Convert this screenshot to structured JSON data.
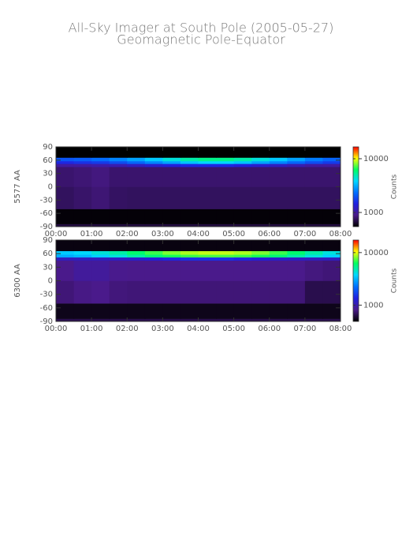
{
  "header": {
    "title": "All-Sky Imager at South Pole (2005-05-27)",
    "subtitle": "Geomagnetic Pole-Equator"
  },
  "chart_data": [
    {
      "type": "heatmap",
      "ylabel": "5577 AA",
      "colorbar_label": "Counts",
      "zscale": "log",
      "colormap": [
        "#000000",
        "#4a1a8a",
        "#2020e0",
        "#0070ff",
        "#00d8ff",
        "#00ff60",
        "#ffff00",
        "#ff0000"
      ],
      "xlim": [
        0,
        8
      ],
      "ylim": [
        -90,
        90
      ],
      "zlim": [
        545,
        16600
      ],
      "xticks": [
        {
          "value": 0,
          "label": "00:00"
        },
        {
          "value": 1,
          "label": "01:00"
        },
        {
          "value": 2,
          "label": "02:00"
        },
        {
          "value": 3,
          "label": "03:00"
        },
        {
          "value": 4,
          "label": "04:00"
        },
        {
          "value": 5,
          "label": "05:00"
        },
        {
          "value": 6,
          "label": "06:00"
        },
        {
          "value": 7,
          "label": "07:00"
        },
        {
          "value": 8,
          "label": "08:00"
        }
      ],
      "yticks": [
        90,
        60,
        30,
        0,
        -30,
        -60,
        -90
      ],
      "zticks": [
        1000,
        10000
      ],
      "xedges": [
        0,
        0.5,
        1,
        1.5,
        2,
        2.5,
        3,
        3.5,
        4,
        4.5,
        5,
        5.5,
        6,
        6.5,
        7,
        7.5,
        8
      ],
      "yedges": [
        -90,
        -84,
        -50,
        0,
        45,
        52,
        58,
        66,
        90
      ],
      "z": [
        [
          680,
          680,
          680,
          680,
          680,
          680,
          680,
          680,
          680,
          680,
          680,
          680,
          680,
          680,
          680,
          680
        ],
        [
          560,
          560,
          560,
          560,
          560,
          560,
          560,
          560,
          560,
          560,
          560,
          560,
          560,
          560,
          560,
          560
        ],
        [
          760,
          790,
          820,
          770,
          760,
          760,
          760,
          760,
          760,
          760,
          760,
          760,
          760,
          760,
          760,
          760
        ],
        [
          800,
          820,
          850,
          800,
          800,
          800,
          800,
          800,
          800,
          800,
          800,
          800,
          800,
          800,
          800,
          800
        ],
        [
          1000,
          1000,
          1050,
          1100,
          1200,
          1300,
          1400,
          1500,
          1500,
          1500,
          1400,
          1300,
          1200,
          1100,
          1000,
          1000
        ],
        [
          1500,
          1600,
          1700,
          1900,
          2200,
          2600,
          3000,
          3500,
          3800,
          3800,
          3500,
          3000,
          2600,
          2200,
          1900,
          1700
        ],
        [
          2000,
          2100,
          2300,
          2600,
          3000,
          3600,
          4300,
          5000,
          5500,
          5500,
          5000,
          4300,
          3600,
          3000,
          2500,
          2200
        ],
        [
          520,
          520,
          520,
          520,
          520,
          520,
          520,
          520,
          520,
          520,
          520,
          520,
          520,
          520,
          520,
          520
        ]
      ]
    },
    {
      "type": "heatmap",
      "ylabel": "6300 AA",
      "colorbar_label": "Counts",
      "zscale": "log",
      "colormap": [
        "#000000",
        "#4a1a8a",
        "#2020e0",
        "#0070ff",
        "#00d8ff",
        "#00ff60",
        "#ffff00",
        "#ff0000"
      ],
      "xlim": [
        0,
        8
      ],
      "ylim": [
        -90,
        90
      ],
      "zlim": [
        490,
        17300
      ],
      "xticks": [
        {
          "value": 0,
          "label": "00:00"
        },
        {
          "value": 1,
          "label": "01:00"
        },
        {
          "value": 2,
          "label": "02:00"
        },
        {
          "value": 3,
          "label": "03:00"
        },
        {
          "value": 4,
          "label": "04:00"
        },
        {
          "value": 5,
          "label": "05:00"
        },
        {
          "value": 6,
          "label": "06:00"
        },
        {
          "value": 7,
          "label": "07:00"
        },
        {
          "value": 8,
          "label": "08:00"
        }
      ],
      "yticks": [
        90,
        60,
        30,
        0,
        -30,
        -60,
        -90
      ],
      "zticks": [
        1000,
        10000
      ],
      "xedges": [
        0,
        0.5,
        1,
        1.5,
        2,
        2.5,
        3,
        3.5,
        4,
        4.5,
        5,
        5.5,
        6,
        6.5,
        7,
        7.5,
        8
      ],
      "yedges": [
        -90,
        -84,
        -50,
        0,
        45,
        52,
        58,
        66,
        90
      ],
      "z": [
        [
          650,
          650,
          650,
          650,
          650,
          650,
          650,
          650,
          650,
          650,
          650,
          650,
          650,
          650,
          650,
          650
        ],
        [
          540,
          540,
          540,
          540,
          540,
          540,
          540,
          540,
          540,
          540,
          540,
          540,
          540,
          540,
          540,
          540
        ],
        [
          760,
          800,
          820,
          770,
          760,
          760,
          760,
          760,
          760,
          760,
          760,
          760,
          760,
          760,
          650,
          650
        ],
        [
          820,
          900,
          900,
          830,
          820,
          820,
          820,
          820,
          820,
          820,
          820,
          820,
          820,
          820,
          780,
          760
        ],
        [
          1100,
          1100,
          1100,
          1150,
          1200,
          1300,
          1400,
          1500,
          1500,
          1500,
          1400,
          1300,
          1200,
          1150,
          1100,
          1100
        ],
        [
          3000,
          3200,
          3600,
          4200,
          5000,
          5800,
          6500,
          7000,
          7200,
          7200,
          7000,
          6500,
          5800,
          5000,
          4200,
          3600
        ],
        [
          3500,
          3800,
          4300,
          5000,
          6000,
          7000,
          8000,
          8800,
          9200,
          9200,
          8800,
          8000,
          7000,
          6000,
          5000,
          4200
        ],
        [
          520,
          520,
          520,
          520,
          520,
          520,
          520,
          520,
          520,
          520,
          520,
          520,
          520,
          520,
          520,
          520
        ]
      ]
    }
  ]
}
